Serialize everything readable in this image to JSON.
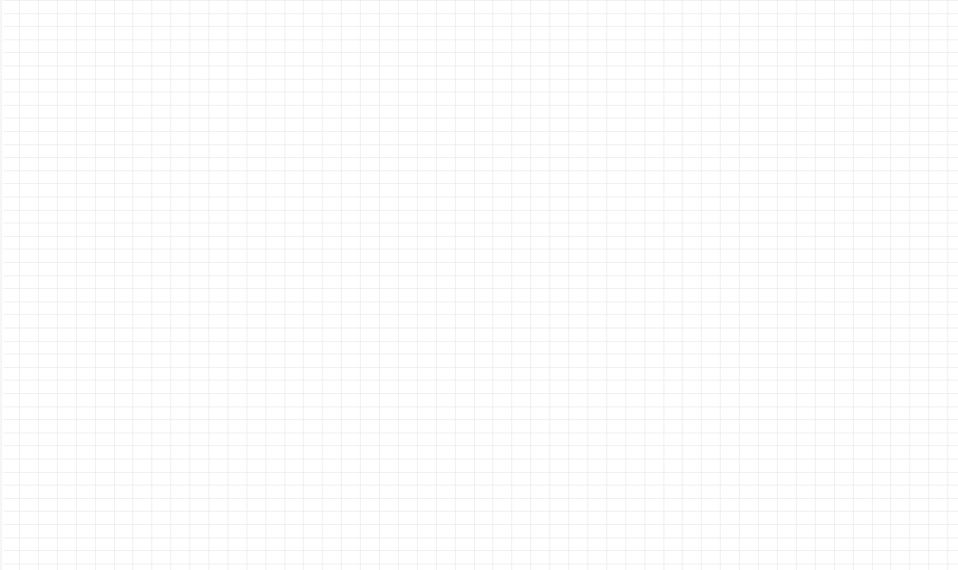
{
  "canvas": {
    "type": "empty-grid",
    "background_color": "#ffffff",
    "grid_line_color": "#ebebeb",
    "border_color": "#e6e6e6"
  }
}
